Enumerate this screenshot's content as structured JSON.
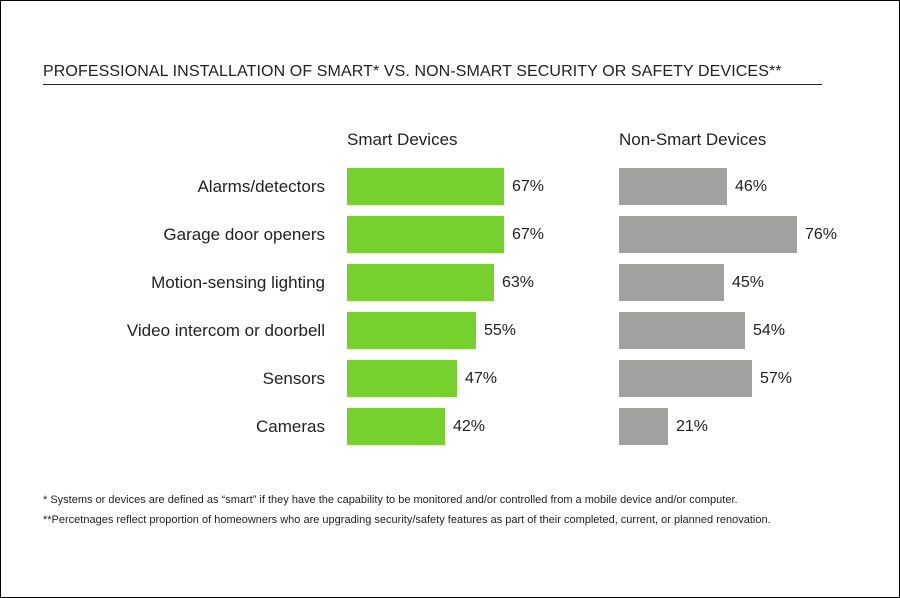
{
  "chart_data": {
    "type": "bar",
    "orientation": "horizontal",
    "title": "PROFESSIONAL INSTALLATION OF SMART* VS. NON-SMART SECURITY OR SAFETY DEVICES**",
    "categories": [
      "Alarms/detectors",
      "Garage door openers",
      "Motion-sensing lighting",
      "Video intercom or doorbell",
      "Sensors",
      "Cameras"
    ],
    "series": [
      {
        "name": "Smart Devices",
        "color": "#76d12f",
        "values": [
          67,
          67,
          63,
          55,
          47,
          42
        ],
        "labels": [
          "67%",
          "67%",
          "63%",
          "55%",
          "47%",
          "42%"
        ]
      },
      {
        "name": "Non-Smart Devices",
        "color": "#a1a19f",
        "values": [
          46,
          76,
          45,
          54,
          57,
          21
        ],
        "labels": [
          "46%",
          "76%",
          "45%",
          "54%",
          "57%",
          "21%"
        ]
      }
    ],
    "value_unit": "%",
    "xlim": [
      0,
      100
    ],
    "grid": false
  },
  "footnotes": [
    "* Systems or devices are defined as “smart” if they have the capability to be monitored and/or controlled from a mobile device and/or computer.",
    "**Percetnages reflect proportion of homeowners who are upgrading security/safety features as part of their completed, current, or planned renovation."
  ]
}
